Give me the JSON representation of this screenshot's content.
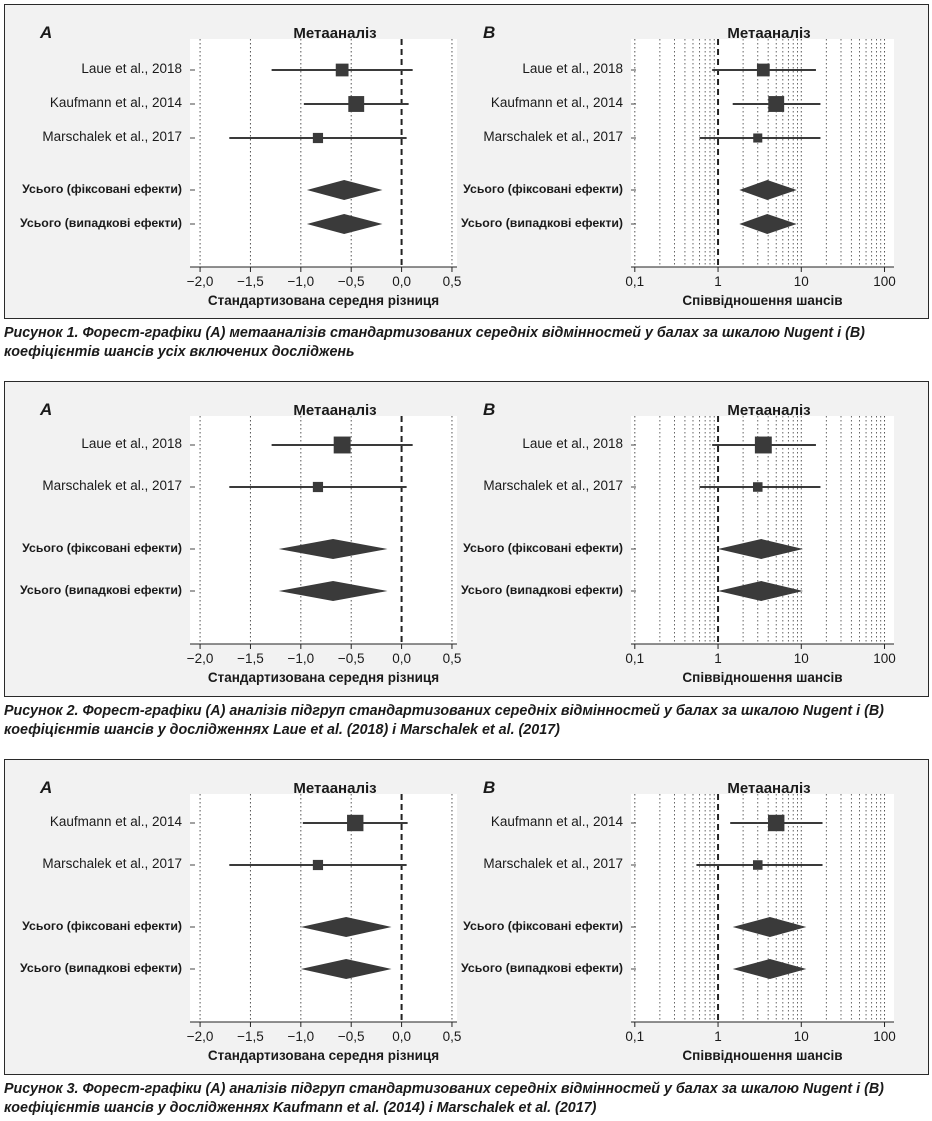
{
  "figures": [
    {
      "caption": "Рисунок 1. Форест-графіки (A) метааналізів стандартизованих середніх відмінностей у балах за шкалою Nugent і (B) коефіцієнтів шансів усіх включених досліджень",
      "chart_data": [
        {
          "type": "forest",
          "panel_label": "A",
          "title": "Метааналіз",
          "xlabel": "Стандартизована середня різниця",
          "scale": "linear",
          "xlim": [
            -2.1,
            0.55
          ],
          "ticks": [
            -2.0,
            -1.5,
            -1.0,
            -0.5,
            0.0,
            0.5
          ],
          "tick_labels": [
            "−2,0",
            "−1,5",
            "−1,0",
            "−0,5",
            "0,0",
            "0,5"
          ],
          "null_line": 0,
          "studies": [
            {
              "label": "Laue et al., 2018",
              "estimate": -0.59,
              "lower": -1.29,
              "upper": 0.11,
              "weight": 0.3
            },
            {
              "label": "Kaufmann et al., 2014",
              "estimate": -0.45,
              "lower": -0.97,
              "upper": 0.07,
              "weight": 0.55
            },
            {
              "label": "Marschalek et al., 2017",
              "estimate": -0.83,
              "lower": -1.71,
              "upper": 0.05,
              "weight": 0.15
            }
          ],
          "summaries": [
            {
              "label": "Усього (фіксовані ефекти)",
              "estimate": -0.57,
              "lower": -0.94,
              "upper": -0.19
            },
            {
              "label": "Усього (випадкові ефекти)",
              "estimate": -0.57,
              "lower": -0.94,
              "upper": -0.19
            }
          ]
        },
        {
          "type": "forest",
          "panel_label": "B",
          "title": "Метааналіз",
          "xlabel": "Співвідношення шансів",
          "scale": "log",
          "xlim": [
            0.09,
            130
          ],
          "ticks": [
            0.1,
            1,
            10,
            100
          ],
          "tick_labels": [
            "0,1",
            "1",
            "10",
            "100"
          ],
          "null_line": 1,
          "studies": [
            {
              "label": "Laue et al., 2018",
              "estimate": 3.5,
              "lower": 0.85,
              "upper": 15,
              "weight": 0.3
            },
            {
              "label": "Kaufmann et al., 2014",
              "estimate": 5.0,
              "lower": 1.5,
              "upper": 17,
              "weight": 0.55
            },
            {
              "label": "Marschalek et al., 2017",
              "estimate": 3.0,
              "lower": 0.6,
              "upper": 17,
              "weight": 0.1
            }
          ],
          "summaries": [
            {
              "label": "Усього (фіксовані ефекти)",
              "estimate": 3.9,
              "lower": 1.8,
              "upper": 8.8
            },
            {
              "label": "Усього (випадкові ефекти)",
              "estimate": 3.9,
              "lower": 1.8,
              "upper": 8.8
            }
          ]
        }
      ]
    },
    {
      "caption": "Рисунок 2. Форест-графіки (A) аналізів підгруп стандартизованих середніх відмінностей у балах за шкалою Nugent і (B) коефіцієнтів шансів у дослідженнях Laue et al. (2018) і Marschalek et al. (2017)",
      "chart_data": [
        {
          "type": "forest",
          "panel_label": "A",
          "title": "Метааналіз",
          "xlabel": "Стандартизована середня різниця",
          "scale": "linear",
          "xlim": [
            -2.1,
            0.55
          ],
          "ticks": [
            -2.0,
            -1.5,
            -1.0,
            -0.5,
            0.0,
            0.5
          ],
          "tick_labels": [
            "−2,0",
            "−1,5",
            "−1,0",
            "−0,5",
            "0,0",
            "0,5"
          ],
          "null_line": 0,
          "studies": [
            {
              "label": "Laue et al., 2018",
              "estimate": -0.59,
              "lower": -1.29,
              "upper": 0.11,
              "weight": 0.65
            },
            {
              "label": "Marschalek et al., 2017",
              "estimate": -0.83,
              "lower": -1.71,
              "upper": 0.05,
              "weight": 0.15
            }
          ],
          "summaries": [
            {
              "label": "Усього (фіксовані ефекти)",
              "estimate": -0.68,
              "lower": -1.22,
              "upper": -0.14
            },
            {
              "label": "Усього (випадкові ефекти)",
              "estimate": -0.68,
              "lower": -1.22,
              "upper": -0.14
            }
          ]
        },
        {
          "type": "forest",
          "panel_label": "B",
          "title": "Метааналіз",
          "xlabel": "Співвідношення шансів",
          "scale": "log",
          "xlim": [
            0.09,
            130
          ],
          "ticks": [
            0.1,
            1,
            10,
            100
          ],
          "tick_labels": [
            "0,1",
            "1",
            "10",
            "100"
          ],
          "null_line": 1,
          "studies": [
            {
              "label": "Laue et al., 2018",
              "estimate": 3.5,
              "lower": 0.85,
              "upper": 15,
              "weight": 0.65
            },
            {
              "label": "Marschalek et al., 2017",
              "estimate": 3.0,
              "lower": 0.6,
              "upper": 17,
              "weight": 0.12
            }
          ],
          "summaries": [
            {
              "label": "Усього (фіксовані ефекти)",
              "estimate": 3.3,
              "lower": 1.0,
              "upper": 10.5
            },
            {
              "label": "Усього (випадкові ефекти)",
              "estimate": 3.3,
              "lower": 1.0,
              "upper": 10.5
            }
          ]
        }
      ]
    },
    {
      "caption": "Рисунок 3. Форест-графіки (A) аналізів підгруп стандартизованих середніх відмінностей у балах за шкалою Nugent і (B) коефіцієнтів шансів у дослідженнях Kaufmann et al. (2014) і Marschalek et al. (2017)",
      "chart_data": [
        {
          "type": "forest",
          "panel_label": "A",
          "title": "Метааналіз",
          "xlabel": "Стандартизована середня різниця",
          "scale": "linear",
          "xlim": [
            -2.1,
            0.55
          ],
          "ticks": [
            -2.0,
            -1.5,
            -1.0,
            -0.5,
            0.0,
            0.5
          ],
          "tick_labels": [
            "−2,0",
            "−1,5",
            "−1,0",
            "−0,5",
            "0,0",
            "0,5"
          ],
          "null_line": 0,
          "studies": [
            {
              "label": "Kaufmann et al., 2014",
              "estimate": -0.46,
              "lower": -0.98,
              "upper": 0.06,
              "weight": 0.6
            },
            {
              "label": "Marschalek et al., 2017",
              "estimate": -0.83,
              "lower": -1.71,
              "upper": 0.05,
              "weight": 0.15
            }
          ],
          "summaries": [
            {
              "label": "Усього (фіксовані ефекти)",
              "estimate": -0.55,
              "lower": -1.0,
              "upper": -0.1
            },
            {
              "label": "Усього (випадкові ефекти)",
              "estimate": -0.55,
              "lower": -1.0,
              "upper": -0.1
            }
          ]
        },
        {
          "type": "forest",
          "panel_label": "B",
          "title": "Метааналіз",
          "xlabel": "Співвідношення шансів",
          "scale": "log",
          "xlim": [
            0.09,
            130
          ],
          "ticks": [
            0.1,
            1,
            10,
            100
          ],
          "tick_labels": [
            "0,1",
            "1",
            "10",
            "100"
          ],
          "null_line": 1,
          "studies": [
            {
              "label": "Kaufmann et al., 2014",
              "estimate": 5.0,
              "lower": 1.4,
              "upper": 18,
              "weight": 0.6
            },
            {
              "label": "Marschalek et al., 2017",
              "estimate": 3.0,
              "lower": 0.55,
              "upper": 18,
              "weight": 0.12
            }
          ],
          "summaries": [
            {
              "label": "Усього (фіксовані ефекти)",
              "estimate": 4.2,
              "lower": 1.5,
              "upper": 11.5
            },
            {
              "label": "Усього (випадкові ефекти)",
              "estimate": 4.2,
              "lower": 1.5,
              "upper": 11.5
            }
          ]
        }
      ]
    }
  ],
  "colors": {
    "panel_bg": "#f2f2f2",
    "plot_bg": "#ffffff",
    "marker": "#3a3a3a",
    "grid": "#555555",
    "text": "#1a1a1a"
  }
}
